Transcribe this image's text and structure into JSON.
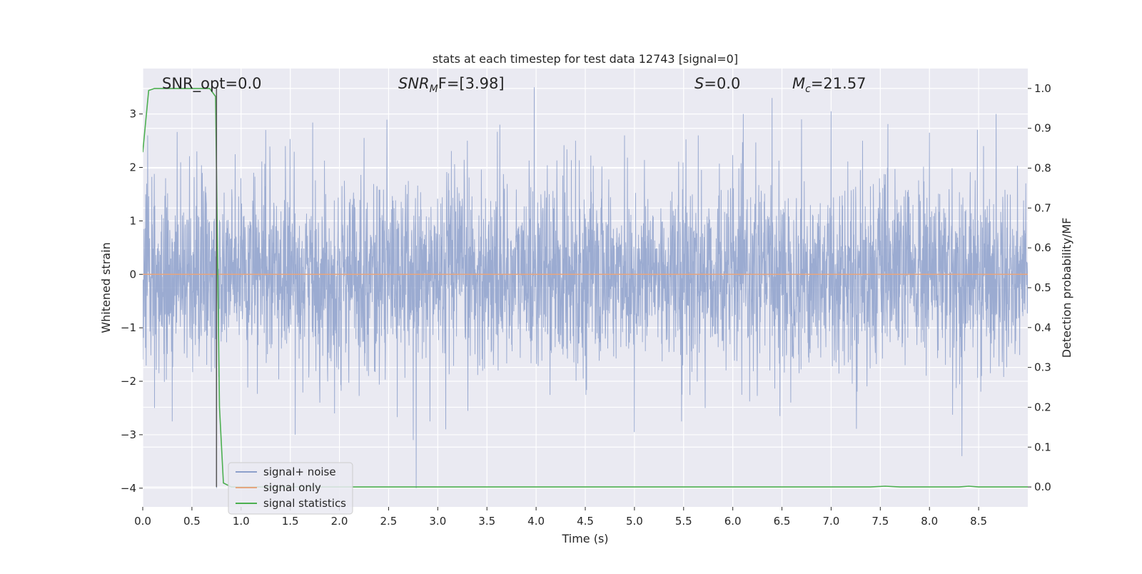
{
  "chart_data": {
    "type": "line",
    "title": "stats at each timestep for test data 12743 [signal=0]",
    "xlabel": "Time (s)",
    "ylabel_left": "Whitened strain",
    "ylabel_right": "Detection probability/MF",
    "xlim": [
      0.0,
      9.0
    ],
    "ylim_left": [
      -4.35,
      3.85
    ],
    "ylim_right": [
      -0.05,
      1.05
    ],
    "xticks": [
      "0.0",
      "0.5",
      "1.0",
      "1.5",
      "2.0",
      "2.5",
      "3.0",
      "3.5",
      "4.0",
      "4.5",
      "5.0",
      "5.5",
      "6.0",
      "6.5",
      "7.0",
      "7.5",
      "8.0",
      "8.5"
    ],
    "xtick_values": [
      0.0,
      0.5,
      1.0,
      1.5,
      2.0,
      2.5,
      3.0,
      3.5,
      4.0,
      4.5,
      5.0,
      5.5,
      6.0,
      6.5,
      7.0,
      7.5,
      8.0,
      8.5
    ],
    "yticks_left": [
      "−4",
      "−3",
      "−2",
      "−1",
      "0",
      "1",
      "2",
      "3"
    ],
    "ytick_values_left": [
      -4,
      -3,
      -2,
      -1,
      0,
      1,
      2,
      3
    ],
    "yticks_right": [
      "0.0",
      "0.1",
      "0.2",
      "0.3",
      "0.4",
      "0.5",
      "0.6",
      "0.7",
      "0.8",
      "0.9",
      "1.0"
    ],
    "ytick_values_right": [
      0.0,
      0.1,
      0.2,
      0.3,
      0.4,
      0.5,
      0.6,
      0.7,
      0.8,
      0.9,
      1.0
    ],
    "grid": true,
    "legend_position": "lower-left",
    "annotations": {
      "snr_opt": "SNR_opt=0.0",
      "snr_mf_base": "SNR",
      "snr_mf_sub": "M",
      "snr_mf_rest": "F=[3.98]",
      "s_stat_base": "S",
      "s_stat_rest": "=0.0",
      "mc_base": "M",
      "mc_sub": "c",
      "mc_rest": "=21.57"
    },
    "series": [
      {
        "name": "signal+ noise",
        "axis": "left",
        "color": "#8da0cb",
        "description_values": {
          "approx_std": 0.85,
          "peak_max": 3.5,
          "peak_min": -4.0
        },
        "peaks": [
          {
            "x": 0.05,
            "y": 2.6
          },
          {
            "x": 0.12,
            "y": -2.5
          },
          {
            "x": 0.3,
            "y": -2.75
          },
          {
            "x": 0.55,
            "y": 2.3
          },
          {
            "x": 0.75,
            "y": -4.0
          },
          {
            "x": 1.25,
            "y": 2.7
          },
          {
            "x": 1.45,
            "y": 2.4
          },
          {
            "x": 1.8,
            "y": -2.4
          },
          {
            "x": 1.95,
            "y": -2.6
          },
          {
            "x": 2.25,
            "y": 2.55
          },
          {
            "x": 2.75,
            "y": -3.1
          },
          {
            "x": 2.78,
            "y": -4.0
          },
          {
            "x": 2.92,
            "y": -2.75
          },
          {
            "x": 3.08,
            "y": -2.9
          },
          {
            "x": 3.3,
            "y": 2.5
          },
          {
            "x": 3.63,
            "y": 2.8
          },
          {
            "x": 3.98,
            "y": 3.5
          },
          {
            "x": 4.4,
            "y": 2.5
          },
          {
            "x": 4.9,
            "y": 2.6
          },
          {
            "x": 5.0,
            "y": -2.95
          },
          {
            "x": 5.48,
            "y": -2.75
          },
          {
            "x": 5.65,
            "y": 2.6
          },
          {
            "x": 5.72,
            "y": -2.5
          },
          {
            "x": 6.4,
            "y": 3.3
          },
          {
            "x": 6.48,
            "y": -2.65
          },
          {
            "x": 6.7,
            "y": 2.9
          },
          {
            "x": 7.0,
            "y": 3.05
          },
          {
            "x": 7.32,
            "y": 2.5
          },
          {
            "x": 8.0,
            "y": 2.65
          },
          {
            "x": 8.33,
            "y": -3.4
          },
          {
            "x": 8.55,
            "y": 2.4
          }
        ]
      },
      {
        "name": "signal only",
        "axis": "left",
        "color": "#e5a57f",
        "x": [
          0.0,
          9.0
        ],
        "y": [
          0.0,
          0.0
        ]
      },
      {
        "name": "signal statistics",
        "axis": "right",
        "color": "#4caf50",
        "x": [
          0.0,
          0.06,
          0.12,
          0.5,
          0.68,
          0.74,
          0.78,
          0.82,
          0.9,
          1.5,
          3.0,
          5.0,
          6.5,
          7.4,
          7.55,
          7.7,
          8.3,
          8.4,
          8.5,
          9.0
        ],
        "y": [
          0.84,
          0.995,
          1.0,
          1.0,
          1.0,
          0.98,
          0.2,
          0.01,
          0.0,
          0.0,
          0.0,
          0.0,
          0.0,
          0.0,
          0.002,
          0.0,
          0.0,
          0.002,
          0.0,
          0.0
        ]
      }
    ],
    "vline": {
      "x": 0.75,
      "y_from": 0.0,
      "y_to": 1.0,
      "color": "#555555"
    }
  }
}
